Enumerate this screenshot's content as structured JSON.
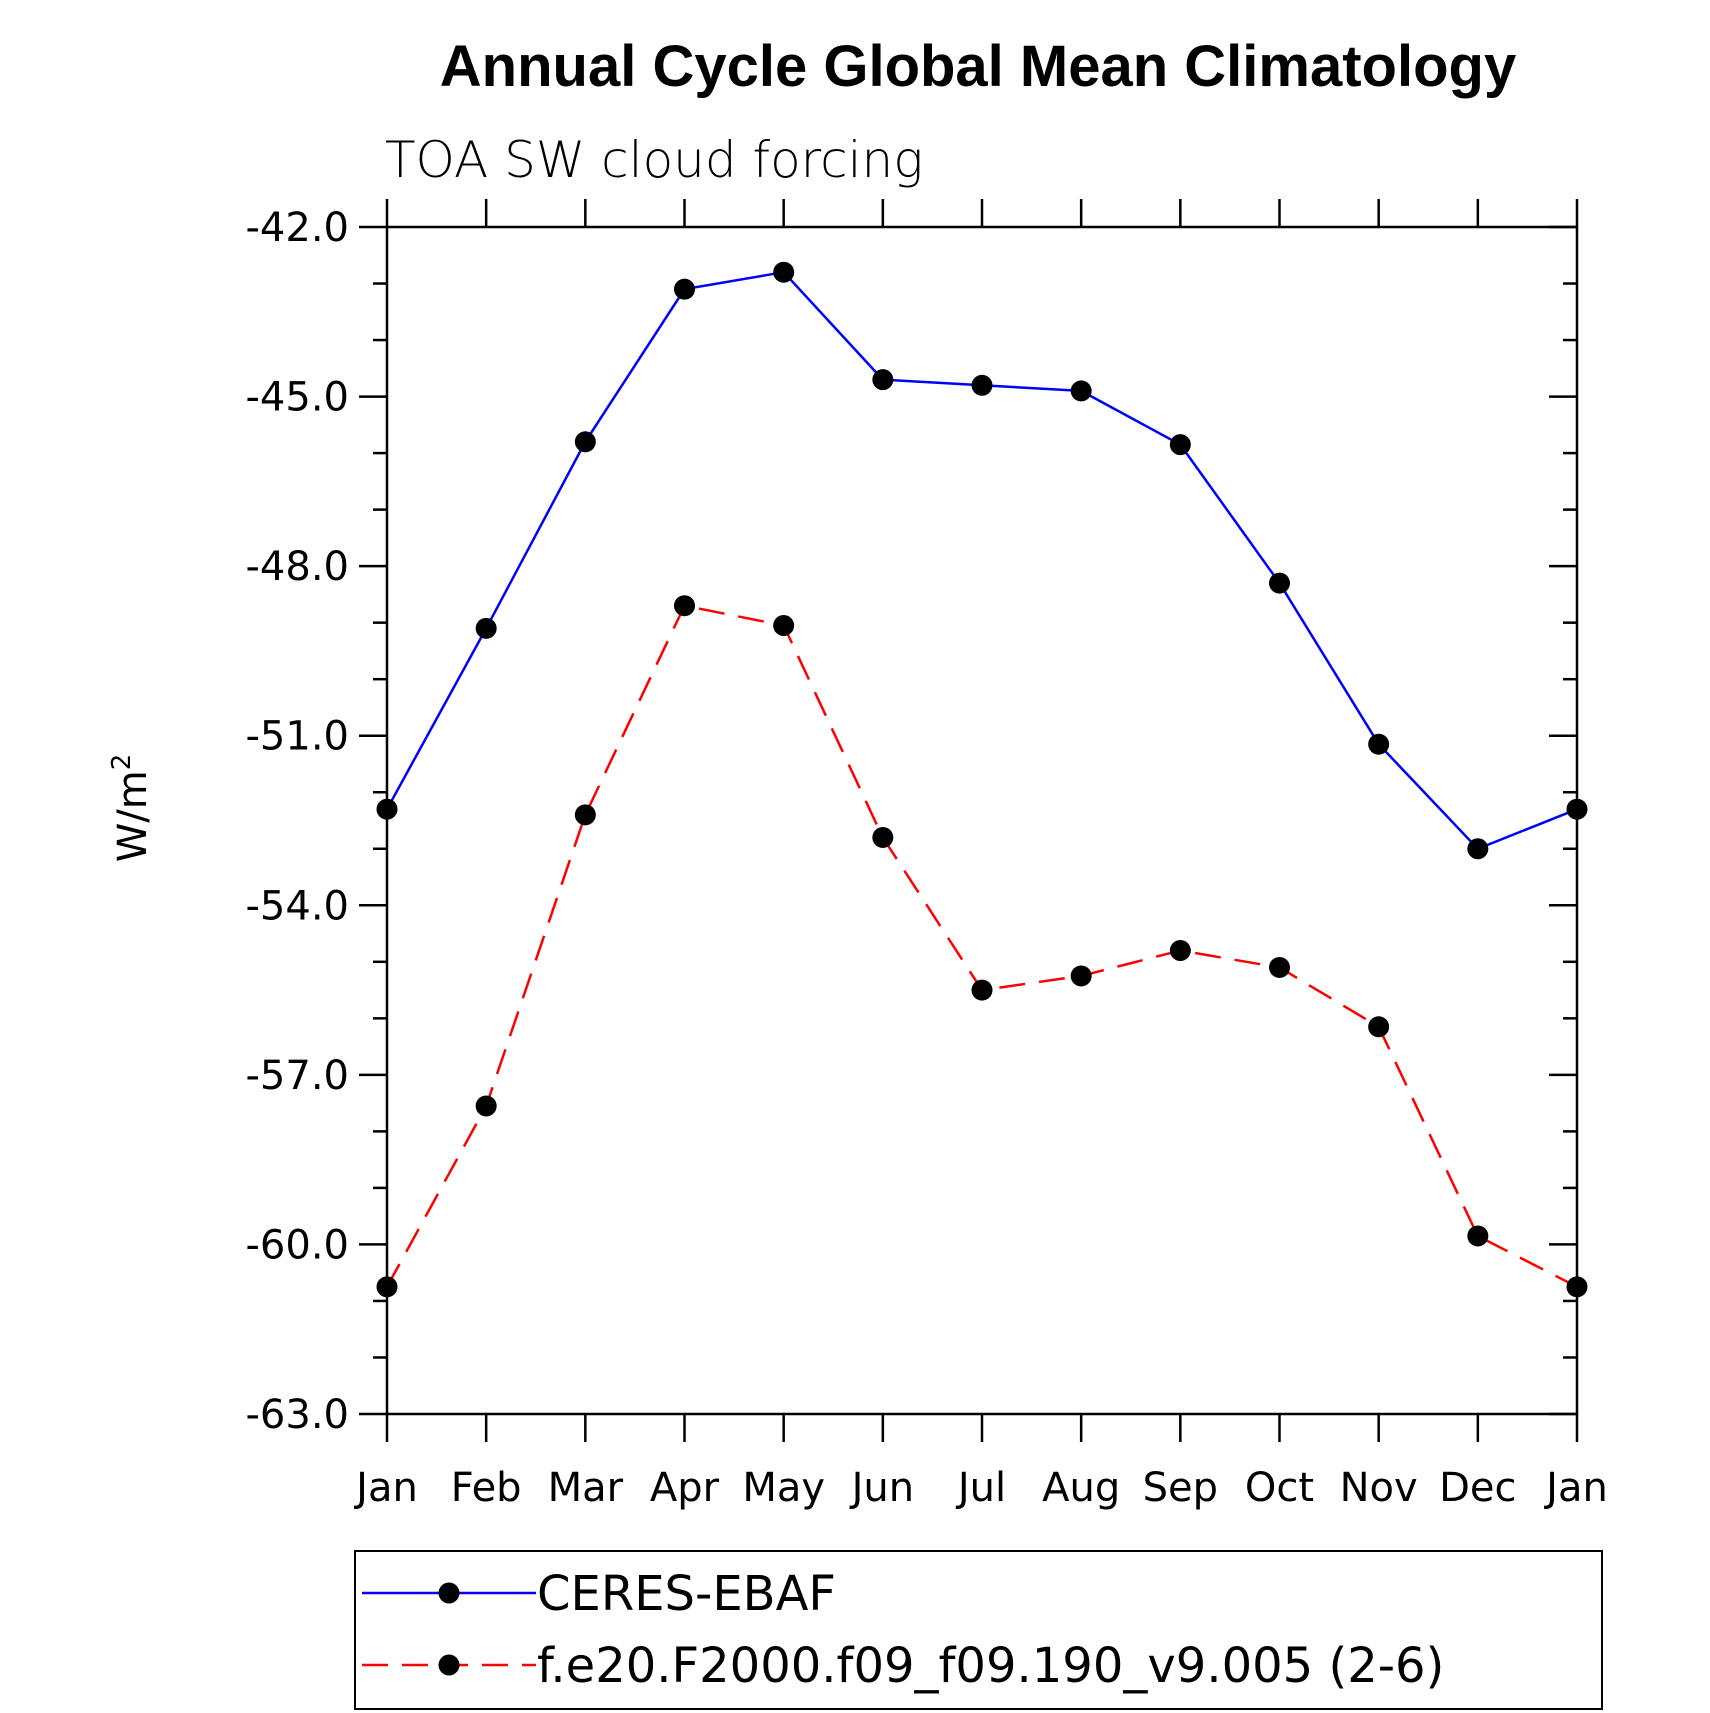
{
  "chart_data": {
    "type": "line",
    "title": "Annual Cycle Global Mean Climatology",
    "subtitle": "TOA SW cloud forcing",
    "ylabel": "W/m",
    "ylabel_superscript": "2",
    "xlabel": "",
    "ylim": [
      -63.0,
      -42.0
    ],
    "yticks": [
      "-42.0",
      "-45.0",
      "-48.0",
      "-51.0",
      "-54.0",
      "-57.0",
      "-60.0",
      "-63.0"
    ],
    "ytick_values": [
      -42,
      -45,
      -48,
      -51,
      -54,
      -57,
      -60,
      -63
    ],
    "categories": [
      "Jan",
      "Feb",
      "Mar",
      "Apr",
      "May",
      "Jun",
      "Jul",
      "Aug",
      "Sep",
      "Oct",
      "Nov",
      "Dec",
      "Jan"
    ],
    "series": [
      {
        "name": "CERES-EBAF",
        "color": "#0000ff",
        "dash": "solid",
        "values": [
          -52.3,
          -49.1,
          -45.8,
          -43.1,
          -42.8,
          -44.7,
          -44.8,
          -44.9,
          -45.85,
          -48.3,
          -51.15,
          -53.0,
          -52.3
        ]
      },
      {
        "name": "f.e20.F2000.f09_f09.190_v9.005 (2-6)",
        "color": "#ff0000",
        "dash": "dashed",
        "values": [
          -60.75,
          -57.55,
          -52.4,
          -48.7,
          -49.05,
          -52.8,
          -55.5,
          -55.25,
          -54.8,
          -55.1,
          -56.15,
          -59.85,
          -60.75
        ]
      }
    ],
    "legend_position": "bottom",
    "grid": false
  }
}
